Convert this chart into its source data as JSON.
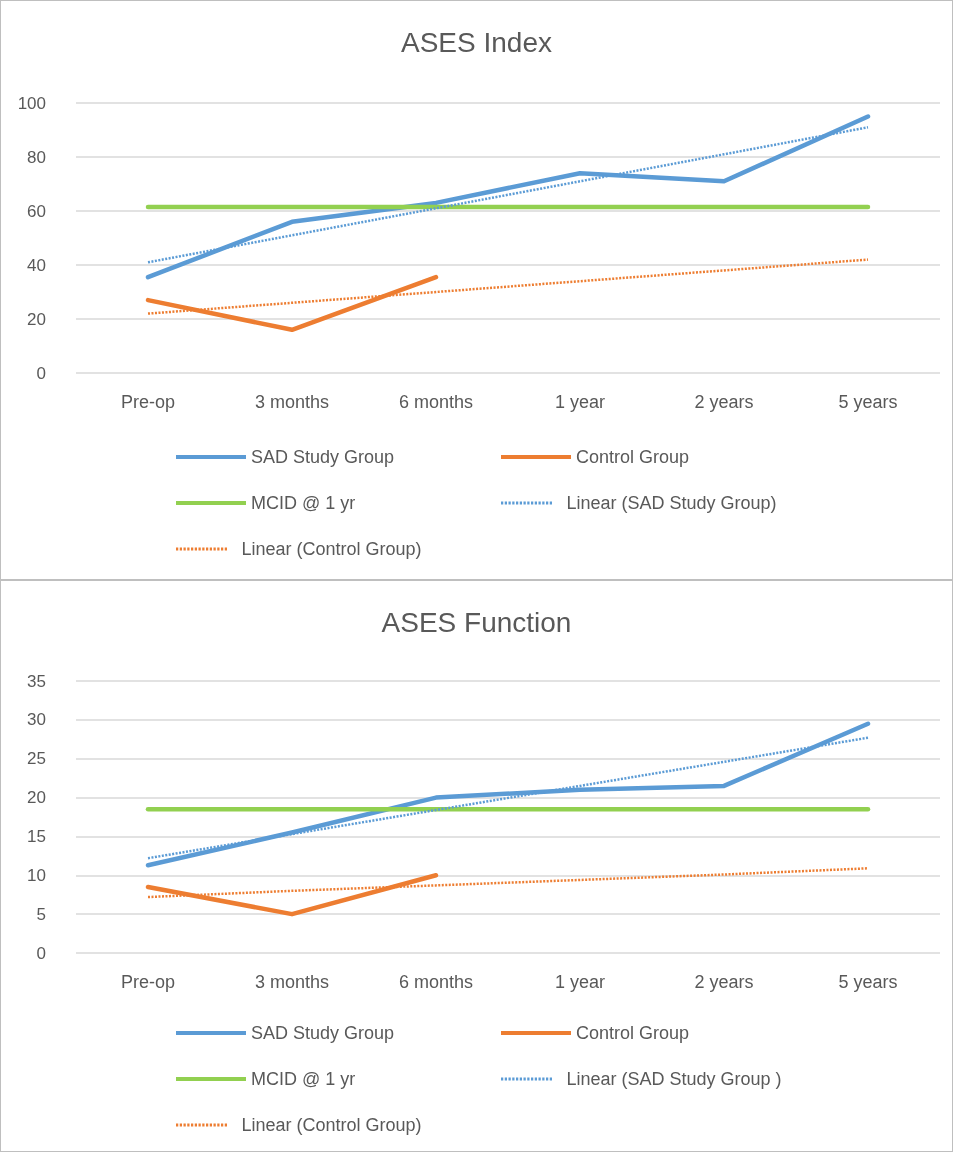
{
  "chart_data": [
    {
      "type": "line",
      "title": "ASES Index",
      "categories": [
        "Pre-op",
        "3 months",
        "6 months",
        "1 year",
        "2 years",
        "5 years"
      ],
      "ylim": [
        0,
        100
      ],
      "yticks": [
        0,
        20,
        40,
        60,
        80,
        100
      ],
      "grid": "y",
      "legend": "bottom",
      "marker": "none",
      "series": [
        {
          "name": "SAD Study Group",
          "color": "#5b9bd5",
          "line_style": "solid",
          "values": [
            35.5,
            56,
            63,
            74,
            71,
            95
          ]
        },
        {
          "name": "Control Group",
          "color": "#ed7d31",
          "line_style": "solid",
          "values": [
            27,
            16,
            35.5,
            null,
            null,
            null
          ]
        },
        {
          "name": "MCID @ 1 yr",
          "color": "#92d050",
          "line_style": "solid",
          "values": [
            61.5,
            61.5,
            61.5,
            61.5,
            61.5,
            61.5
          ]
        },
        {
          "name": "Linear (SAD Study Group)",
          "color": "#5b9bd5",
          "line_style": "dotted",
          "values": [
            41,
            51,
            61,
            71,
            81,
            91
          ]
        },
        {
          "name": "Linear (Control Group)",
          "color": "#ed7d31",
          "line_style": "dotted",
          "values": [
            22,
            26,
            30,
            34,
            38,
            42
          ]
        }
      ]
    },
    {
      "type": "line",
      "title": "ASES Function",
      "categories": [
        "Pre-op",
        "3 months",
        "6 months",
        "1 year",
        "2 years",
        "5 years"
      ],
      "ylim": [
        0,
        35
      ],
      "yticks": [
        0,
        5,
        10,
        15,
        20,
        25,
        30,
        35
      ],
      "grid": "y",
      "legend": "bottom",
      "marker": "none",
      "series": [
        {
          "name": "SAD Study Group",
          "color": "#5b9bd5",
          "line_style": "solid",
          "values": [
            11.3,
            15.5,
            20,
            21,
            21.5,
            29.5
          ]
        },
        {
          "name": "Control Group",
          "color": "#ed7d31",
          "line_style": "solid",
          "values": [
            8.5,
            5,
            10,
            null,
            null,
            null
          ]
        },
        {
          "name": "MCID @ 1 yr",
          "color": "#92d050",
          "line_style": "solid",
          "values": [
            18.5,
            18.5,
            18.5,
            18.5,
            18.5,
            18.5
          ]
        },
        {
          "name": "Linear (SAD Study Group )",
          "color": "#5b9bd5",
          "line_style": "dotted",
          "values": [
            12.2,
            15.3,
            18.4,
            21.5,
            24.6,
            27.7
          ]
        },
        {
          "name": "Linear (Control Group)",
          "color": "#ed7d31",
          "line_style": "dotted",
          "values": [
            7.2,
            8,
            8.7,
            9.4,
            10.1,
            10.9
          ]
        }
      ]
    }
  ]
}
